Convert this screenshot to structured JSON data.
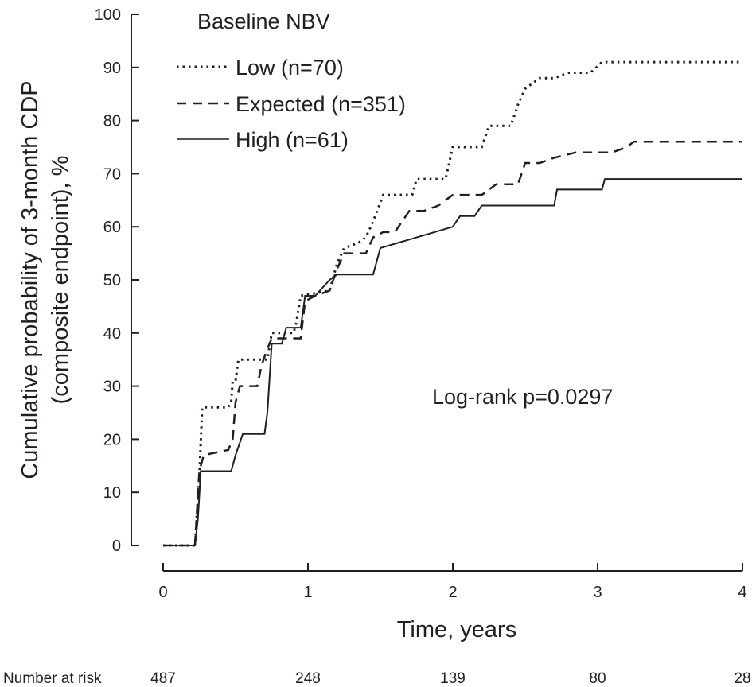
{
  "chart_data": {
    "type": "line",
    "title": "",
    "xlabel": "Time, years",
    "ylabel_line1": "Cumulative probability of 3-month CDP",
    "ylabel_line2": "(composite endpoint), %",
    "xlim": [
      0,
      4
    ],
    "ylim": [
      0,
      100
    ],
    "x_ticks": [
      0,
      1,
      2,
      3,
      4
    ],
    "y_ticks": [
      0,
      10,
      20,
      30,
      40,
      50,
      60,
      70,
      80,
      90,
      100
    ],
    "grid": false,
    "legend": {
      "title": "Baseline NBV",
      "placement": "top-left"
    },
    "annotation": "Log-rank p=0.0297",
    "series": [
      {
        "name": "Low (n=70)",
        "line_style": "dotted",
        "color": "#231f20",
        "points": [
          [
            0,
            0
          ],
          [
            0.22,
            0
          ],
          [
            0.25,
            13
          ],
          [
            0.27,
            26
          ],
          [
            0.45,
            26
          ],
          [
            0.47,
            27
          ],
          [
            0.48,
            31
          ],
          [
            0.5,
            31
          ],
          [
            0.52,
            35
          ],
          [
            0.72,
            35
          ],
          [
            0.75,
            40
          ],
          [
            0.9,
            40
          ],
          [
            0.92,
            42
          ],
          [
            0.95,
            47
          ],
          [
            1.15,
            48
          ],
          [
            1.2,
            53
          ],
          [
            1.25,
            56
          ],
          [
            1.35,
            57
          ],
          [
            1.4,
            58
          ],
          [
            1.45,
            61
          ],
          [
            1.52,
            66
          ],
          [
            1.72,
            66
          ],
          [
            1.75,
            69
          ],
          [
            1.95,
            69
          ],
          [
            2,
            75
          ],
          [
            2.2,
            75
          ],
          [
            2.25,
            79
          ],
          [
            2.4,
            79
          ],
          [
            2.45,
            83
          ],
          [
            2.5,
            86
          ],
          [
            2.6,
            88
          ],
          [
            2.7,
            88
          ],
          [
            2.8,
            89
          ],
          [
            2.95,
            89
          ],
          [
            3.03,
            91
          ],
          [
            4,
            91
          ]
        ]
      },
      {
        "name": "Expected (n=351)",
        "line_style": "dashed",
        "color": "#231f20",
        "points": [
          [
            0,
            0
          ],
          [
            0.22,
            0
          ],
          [
            0.25,
            14
          ],
          [
            0.28,
            17
          ],
          [
            0.45,
            18
          ],
          [
            0.48,
            20
          ],
          [
            0.5,
            27
          ],
          [
            0.53,
            30
          ],
          [
            0.65,
            30
          ],
          [
            0.68,
            34
          ],
          [
            0.72,
            37
          ],
          [
            0.75,
            39
          ],
          [
            0.8,
            39
          ],
          [
            0.95,
            39
          ],
          [
            0.98,
            46
          ],
          [
            1.05,
            47
          ],
          [
            1.15,
            48
          ],
          [
            1.2,
            52
          ],
          [
            1.25,
            55
          ],
          [
            1.4,
            55
          ],
          [
            1.45,
            58
          ],
          [
            1.52,
            59
          ],
          [
            1.6,
            59
          ],
          [
            1.7,
            63
          ],
          [
            1.8,
            63
          ],
          [
            1.9,
            64
          ],
          [
            2,
            66
          ],
          [
            2.2,
            66
          ],
          [
            2.3,
            68
          ],
          [
            2.45,
            68
          ],
          [
            2.5,
            72
          ],
          [
            2.6,
            72
          ],
          [
            2.7,
            73
          ],
          [
            2.85,
            74
          ],
          [
            3.1,
            74
          ],
          [
            3.2,
            75
          ],
          [
            3.25,
            76
          ],
          [
            3.4,
            76
          ],
          [
            3.45,
            76
          ],
          [
            4,
            76
          ]
        ]
      },
      {
        "name": "High (n=61)",
        "line_style": "solid",
        "color": "#231f20",
        "points": [
          [
            0,
            0
          ],
          [
            0.22,
            0
          ],
          [
            0.24,
            5
          ],
          [
            0.26,
            14
          ],
          [
            0.47,
            14
          ],
          [
            0.5,
            17
          ],
          [
            0.55,
            21
          ],
          [
            0.7,
            21
          ],
          [
            0.72,
            25
          ],
          [
            0.75,
            38
          ],
          [
            0.82,
            38
          ],
          [
            0.85,
            41
          ],
          [
            0.95,
            41
          ],
          [
            0.98,
            47
          ],
          [
            1.05,
            47
          ],
          [
            1.15,
            50
          ],
          [
            1.2,
            51
          ],
          [
            1.45,
            51
          ],
          [
            1.5,
            56
          ],
          [
            1.75,
            58
          ],
          [
            2,
            60
          ],
          [
            2.05,
            62
          ],
          [
            2.15,
            62
          ],
          [
            2.2,
            64
          ],
          [
            2.7,
            64
          ],
          [
            2.72,
            67
          ],
          [
            3.03,
            67
          ],
          [
            3.05,
            69
          ],
          [
            4,
            69
          ]
        ]
      }
    ],
    "number_at_risk": {
      "label": "Number at risk",
      "values": [
        "487",
        "248",
        "139",
        "80",
        "28"
      ]
    }
  }
}
